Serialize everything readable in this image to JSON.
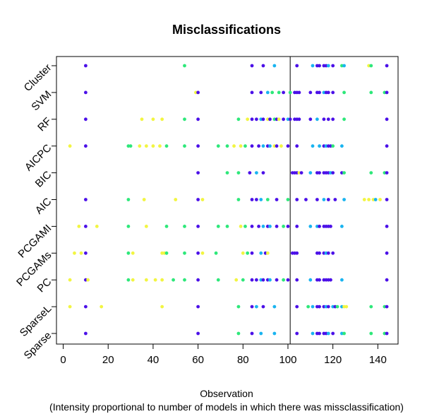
{
  "chart_data": {
    "type": "scatter",
    "title": "Misclassifications",
    "xlabel": "Observation",
    "xlabel_note": "(Intensity proportional to number of models in which there was missclassification)",
    "ylabel": "",
    "xlim": [
      -3,
      149
    ],
    "x_ticks": [
      0,
      20,
      40,
      60,
      80,
      100,
      120,
      140
    ],
    "vline": 101,
    "colors": {
      "low": "#f2f542",
      "mid": "#2ee87a",
      "high": "#19b4f0",
      "max": "#4b10e8"
    },
    "categories": [
      "Cluster",
      "SVM",
      "RF",
      "AICPC",
      "BIC",
      "AIC",
      "PCGAMI",
      "PCGAMs",
      "PC",
      "SparseL",
      "Sparse"
    ],
    "series": [
      {
        "name": "Cluster",
        "points": [
          [
            10,
            "max"
          ],
          [
            54,
            "mid"
          ],
          [
            84,
            "max"
          ],
          [
            89,
            "max"
          ],
          [
            94,
            "high"
          ],
          [
            104,
            "max"
          ],
          [
            111,
            "high"
          ],
          [
            113,
            "max"
          ],
          [
            114,
            "max"
          ],
          [
            116,
            "max"
          ],
          [
            117,
            "max"
          ],
          [
            118,
            "high"
          ],
          [
            120,
            "max"
          ],
          [
            124,
            "mid"
          ],
          [
            125,
            "high"
          ],
          [
            136,
            "low"
          ],
          [
            137,
            "mid"
          ],
          [
            144,
            "max"
          ]
        ]
      },
      {
        "name": "SVM",
        "points": [
          [
            10,
            "max"
          ],
          [
            59,
            "low"
          ],
          [
            60,
            "max"
          ],
          [
            84,
            "max"
          ],
          [
            88,
            "max"
          ],
          [
            91,
            "high"
          ],
          [
            93,
            "mid"
          ],
          [
            96,
            "mid"
          ],
          [
            98,
            "max"
          ],
          [
            101,
            "mid"
          ],
          [
            103,
            "max"
          ],
          [
            104,
            "max"
          ],
          [
            105,
            "max"
          ],
          [
            110,
            "max"
          ],
          [
            113,
            "max"
          ],
          [
            114,
            "max"
          ],
          [
            116,
            "high"
          ],
          [
            117,
            "max"
          ],
          [
            118,
            "max"
          ],
          [
            120,
            "max"
          ],
          [
            125,
            "mid"
          ],
          [
            137,
            "mid"
          ],
          [
            143,
            "mid"
          ],
          [
            144,
            "max"
          ]
        ]
      },
      {
        "name": "RF",
        "points": [
          [
            10,
            "max"
          ],
          [
            35,
            "low"
          ],
          [
            40,
            "low"
          ],
          [
            44,
            "low"
          ],
          [
            54,
            "mid"
          ],
          [
            60,
            "max"
          ],
          [
            78,
            "mid"
          ],
          [
            82,
            "low"
          ],
          [
            84,
            "max"
          ],
          [
            86,
            "max"
          ],
          [
            88,
            "high"
          ],
          [
            89,
            "max"
          ],
          [
            91,
            "low"
          ],
          [
            92,
            "max"
          ],
          [
            94,
            "mid"
          ],
          [
            95,
            "max"
          ],
          [
            96,
            "low"
          ],
          [
            98,
            "max"
          ],
          [
            100,
            "high"
          ],
          [
            101,
            "max"
          ],
          [
            103,
            "max"
          ],
          [
            104,
            "max"
          ],
          [
            105,
            "max"
          ],
          [
            110,
            "max"
          ],
          [
            113,
            "high"
          ],
          [
            116,
            "max"
          ],
          [
            118,
            "max"
          ],
          [
            120,
            "max"
          ],
          [
            125,
            "mid"
          ],
          [
            144,
            "max"
          ]
        ]
      },
      {
        "name": "AICPC",
        "points": [
          [
            3,
            "low"
          ],
          [
            10,
            "max"
          ],
          [
            29,
            "mid"
          ],
          [
            30,
            "mid"
          ],
          [
            34,
            "low"
          ],
          [
            37,
            "low"
          ],
          [
            40,
            "low"
          ],
          [
            43,
            "low"
          ],
          [
            46,
            "mid"
          ],
          [
            54,
            "mid"
          ],
          [
            60,
            "max"
          ],
          [
            69,
            "mid"
          ],
          [
            73,
            "mid"
          ],
          [
            76,
            "low"
          ],
          [
            79,
            "low"
          ],
          [
            81,
            "mid"
          ],
          [
            84,
            "max"
          ],
          [
            87,
            "max"
          ],
          [
            89,
            "high"
          ],
          [
            91,
            "max"
          ],
          [
            92,
            "high"
          ],
          [
            94,
            "low"
          ],
          [
            95,
            "max"
          ],
          [
            97,
            "low"
          ],
          [
            100,
            "max"
          ],
          [
            104,
            "max"
          ],
          [
            111,
            "high"
          ],
          [
            114,
            "high"
          ],
          [
            116,
            "max"
          ],
          [
            117,
            "high"
          ],
          [
            118,
            "max"
          ],
          [
            119,
            "max"
          ],
          [
            120,
            "mid"
          ],
          [
            124,
            "high"
          ],
          [
            144,
            "max"
          ]
        ]
      },
      {
        "name": "BIC",
        "points": [
          [
            60,
            "max"
          ],
          [
            73,
            "mid"
          ],
          [
            78,
            "mid"
          ],
          [
            83,
            "max"
          ],
          [
            86,
            "high"
          ],
          [
            89,
            "max"
          ],
          [
            102,
            "max"
          ],
          [
            103,
            "max"
          ],
          [
            104,
            "max"
          ],
          [
            105,
            "low"
          ],
          [
            106,
            "max"
          ],
          [
            110,
            "high"
          ],
          [
            113,
            "max"
          ],
          [
            114,
            "max"
          ],
          [
            116,
            "max"
          ],
          [
            117,
            "max"
          ],
          [
            118,
            "max"
          ],
          [
            119,
            "high"
          ],
          [
            120,
            "max"
          ],
          [
            124,
            "max"
          ],
          [
            125,
            "mid"
          ],
          [
            137,
            "mid"
          ],
          [
            143,
            "mid"
          ],
          [
            144,
            "max"
          ]
        ]
      },
      {
        "name": "AIC",
        "points": [
          [
            10,
            "max"
          ],
          [
            29,
            "mid"
          ],
          [
            36,
            "low"
          ],
          [
            50,
            "low"
          ],
          [
            62,
            "low"
          ],
          [
            60,
            "max"
          ],
          [
            78,
            "mid"
          ],
          [
            84,
            "max"
          ],
          [
            86,
            "max"
          ],
          [
            88,
            "high"
          ],
          [
            91,
            "mid"
          ],
          [
            95,
            "max"
          ],
          [
            100,
            "mid"
          ],
          [
            104,
            "max"
          ],
          [
            108,
            "max"
          ],
          [
            113,
            "max"
          ],
          [
            116,
            "high"
          ],
          [
            118,
            "max"
          ],
          [
            121,
            "max"
          ],
          [
            125,
            "high"
          ],
          [
            134,
            "low"
          ],
          [
            136,
            "low"
          ],
          [
            138,
            "low"
          ],
          [
            139,
            "high"
          ],
          [
            141,
            "low"
          ],
          [
            144,
            "max"
          ]
        ]
      },
      {
        "name": "PCGAMI",
        "points": [
          [
            7,
            "low"
          ],
          [
            10,
            "max"
          ],
          [
            15,
            "low"
          ],
          [
            29,
            "mid"
          ],
          [
            37,
            "low"
          ],
          [
            46,
            "mid"
          ],
          [
            54,
            "mid"
          ],
          [
            60,
            "max"
          ],
          [
            69,
            "mid"
          ],
          [
            73,
            "mid"
          ],
          [
            79,
            "low"
          ],
          [
            81,
            "mid"
          ],
          [
            84,
            "max"
          ],
          [
            87,
            "max"
          ],
          [
            89,
            "high"
          ],
          [
            91,
            "max"
          ],
          [
            92,
            "high"
          ],
          [
            95,
            "max"
          ],
          [
            98,
            "mid"
          ],
          [
            100,
            "max"
          ],
          [
            104,
            "max"
          ],
          [
            110,
            "high"
          ],
          [
            113,
            "high"
          ],
          [
            114,
            "max"
          ],
          [
            116,
            "max"
          ],
          [
            117,
            "max"
          ],
          [
            118,
            "max"
          ],
          [
            119,
            "max"
          ],
          [
            124,
            "high"
          ],
          [
            144,
            "max"
          ]
        ]
      },
      {
        "name": "PCGAMs",
        "points": [
          [
            5,
            "low"
          ],
          [
            8,
            "low"
          ],
          [
            10,
            "max"
          ],
          [
            29,
            "mid"
          ],
          [
            31,
            "low"
          ],
          [
            44,
            "low"
          ],
          [
            45,
            "low"
          ],
          [
            46,
            "mid"
          ],
          [
            54,
            "mid"
          ],
          [
            60,
            "max"
          ],
          [
            62,
            "low"
          ],
          [
            68,
            "mid"
          ],
          [
            80,
            "low"
          ],
          [
            82,
            "mid"
          ],
          [
            84,
            "max"
          ],
          [
            88,
            "high"
          ],
          [
            90,
            "max"
          ],
          [
            91,
            "low"
          ],
          [
            102,
            "max"
          ],
          [
            103,
            "max"
          ],
          [
            104,
            "max"
          ],
          [
            113,
            "max"
          ],
          [
            114,
            "max"
          ],
          [
            116,
            "max"
          ],
          [
            117,
            "high"
          ],
          [
            118,
            "max"
          ],
          [
            120,
            "max"
          ],
          [
            144,
            "max"
          ]
        ]
      },
      {
        "name": "PC",
        "points": [
          [
            3,
            "low"
          ],
          [
            10,
            "max"
          ],
          [
            11,
            "low"
          ],
          [
            29,
            "mid"
          ],
          [
            31,
            "low"
          ],
          [
            37,
            "low"
          ],
          [
            41,
            "low"
          ],
          [
            44,
            "low"
          ],
          [
            49,
            "mid"
          ],
          [
            54,
            "mid"
          ],
          [
            60,
            "max"
          ],
          [
            69,
            "mid"
          ],
          [
            77,
            "low"
          ],
          [
            80,
            "mid"
          ],
          [
            84,
            "max"
          ],
          [
            86,
            "max"
          ],
          [
            88,
            "high"
          ],
          [
            89,
            "max"
          ],
          [
            91,
            "max"
          ],
          [
            92,
            "high"
          ],
          [
            95,
            "max"
          ],
          [
            98,
            "mid"
          ],
          [
            100,
            "max"
          ],
          [
            104,
            "max"
          ],
          [
            110,
            "high"
          ],
          [
            113,
            "max"
          ],
          [
            114,
            "max"
          ],
          [
            116,
            "max"
          ],
          [
            117,
            "max"
          ],
          [
            118,
            "max"
          ],
          [
            119,
            "max"
          ],
          [
            124,
            "high"
          ],
          [
            144,
            "max"
          ]
        ]
      },
      {
        "name": "SparseL",
        "points": [
          [
            3,
            "low"
          ],
          [
            10,
            "max"
          ],
          [
            17,
            "low"
          ],
          [
            44,
            "low"
          ],
          [
            60,
            "max"
          ],
          [
            78,
            "mid"
          ],
          [
            84,
            "max"
          ],
          [
            86,
            "high"
          ],
          [
            89,
            "max"
          ],
          [
            94,
            "high"
          ],
          [
            104,
            "max"
          ],
          [
            109,
            "mid"
          ],
          [
            111,
            "high"
          ],
          [
            113,
            "max"
          ],
          [
            114,
            "max"
          ],
          [
            116,
            "max"
          ],
          [
            117,
            "high"
          ],
          [
            118,
            "max"
          ],
          [
            120,
            "high"
          ],
          [
            121,
            "max"
          ],
          [
            122,
            "mid"
          ],
          [
            124,
            "high"
          ],
          [
            125,
            "low"
          ],
          [
            126,
            "low"
          ],
          [
            137,
            "mid"
          ],
          [
            143,
            "mid"
          ],
          [
            144,
            "max"
          ]
        ]
      },
      {
        "name": "Sparse",
        "points": [
          [
            10,
            "max"
          ],
          [
            60,
            "max"
          ],
          [
            78,
            "mid"
          ],
          [
            84,
            "max"
          ],
          [
            88,
            "high"
          ],
          [
            94,
            "high"
          ],
          [
            104,
            "max"
          ],
          [
            111,
            "high"
          ],
          [
            113,
            "max"
          ],
          [
            114,
            "max"
          ],
          [
            116,
            "max"
          ],
          [
            117,
            "max"
          ],
          [
            118,
            "high"
          ],
          [
            120,
            "max"
          ],
          [
            124,
            "high"
          ],
          [
            125,
            "mid"
          ],
          [
            137,
            "mid"
          ],
          [
            143,
            "mid"
          ],
          [
            144,
            "max"
          ]
        ]
      }
    ]
  }
}
